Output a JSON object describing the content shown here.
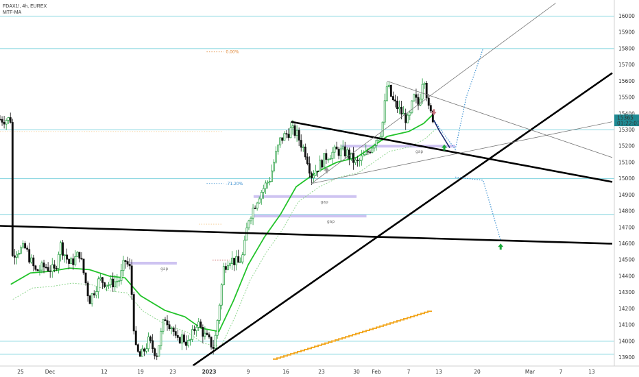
{
  "header": {
    "symbol": "FDAX1!, 4h, EUREX",
    "indicator": "MTF-MA"
  },
  "price_label": {
    "value": "15365",
    "countdown": "01:22:03"
  },
  "colors": {
    "bull": "#1e9b3a",
    "bear": "#111111",
    "ma": "#22c32a",
    "ma2": "#8fd68f",
    "hline": "#7fd3de",
    "trend": "#000000",
    "thin": "#777777",
    "projection": "#3a8fd0",
    "gap": "#c5b8ef",
    "stairs": "#f2a823",
    "price_tag": "#1f8a93",
    "arrow_green": "#1aa83a",
    "arrow_red": "#c2707a",
    "arrow_gray": "#9a9a9a",
    "arrow_blue": "#1a2a6e"
  },
  "chart_data": {
    "type": "candlestick",
    "title": "",
    "y_axis": {
      "range": [
        13840,
        16080
      ],
      "ticks": [
        13900,
        14000,
        14100,
        14200,
        14300,
        14400,
        14500,
        14600,
        14700,
        14800,
        14900,
        15000,
        15100,
        15200,
        15300,
        15400,
        15500,
        15600,
        15700,
        15800,
        15900,
        16000
      ],
      "position": "right"
    },
    "x_axis": {
      "tick_labels": [
        "25",
        "Dec",
        "12",
        "19",
        "23",
        "2023",
        "9",
        "16",
        "23",
        "30",
        "Feb",
        "7",
        "13",
        "20",
        "Mar",
        "7",
        "13"
      ]
    },
    "last_price": 15365,
    "close_path": [
      {
        "d": "Nov 23",
        "p": 14500
      },
      {
        "d": "Nov 24",
        "p": 14560
      },
      {
        "d": "Nov 26",
        "p": 14570
      },
      {
        "d": "Nov 28",
        "p": 14430
      },
      {
        "d": "Nov 30",
        "p": 14460
      },
      {
        "d": "Dec 2",
        "p": 14430
      },
      {
        "d": "Dec 3",
        "p": 14600
      },
      {
        "d": "Dec 5",
        "p": 14470
      },
      {
        "d": "Dec 7",
        "p": 14540
      },
      {
        "d": "Dec 9",
        "p": 14250
      },
      {
        "d": "Dec 11",
        "p": 14380
      },
      {
        "d": "Dec 13",
        "p": 14350
      },
      {
        "d": "Dec 15",
        "p": 14380
      },
      {
        "d": "Dec 16",
        "p": 14500
      },
      {
        "d": "Dec 17",
        "p": 14440
      },
      {
        "d": "Dec 18",
        "p": 13950
      },
      {
        "d": "Dec 19",
        "p": 13900
      },
      {
        "d": "Dec 20",
        "p": 14000
      },
      {
        "d": "Dec 21",
        "p": 13920
      },
      {
        "d": "Dec 22",
        "p": 14150
      },
      {
        "d": "Dec 23",
        "p": 14080
      },
      {
        "d": "Dec 24",
        "p": 13980
      },
      {
        "d": "Dec 25",
        "p": 14030
      },
      {
        "d": "Dec 27",
        "p": 13980
      },
      {
        "d": "Dec 29",
        "p": 14120
      },
      {
        "d": "Dec 31",
        "p": 14030
      },
      {
        "d": "Jan 2",
        "p": 13960
      },
      {
        "d": "Jan 3",
        "p": 14200
      },
      {
        "d": "Jan 4",
        "p": 14450
      },
      {
        "d": "Jan 5",
        "p": 14510
      },
      {
        "d": "Jan 7",
        "p": 14480
      },
      {
        "d": "Jan 8",
        "p": 14530
      },
      {
        "d": "Jan 9",
        "p": 14750
      },
      {
        "d": "Jan 11",
        "p": 14900
      },
      {
        "d": "Jan 13",
        "p": 15000
      },
      {
        "d": "Jan 14",
        "p": 15130
      },
      {
        "d": "Jan 15",
        "p": 15240
      },
      {
        "d": "Jan 17",
        "p": 15300
      },
      {
        "d": "Jan 18",
        "p": 15280
      },
      {
        "d": "Jan 20",
        "p": 15150
      },
      {
        "d": "Jan 21",
        "p": 15020
      },
      {
        "d": "Jan 22",
        "p": 15060
      },
      {
        "d": "Jan 24",
        "p": 15140
      },
      {
        "d": "Jan 26",
        "p": 15170
      },
      {
        "d": "Jan 28",
        "p": 15160
      },
      {
        "d": "Jan 30",
        "p": 15090
      },
      {
        "d": "Jan 31",
        "p": 15150
      },
      {
        "d": "Feb 2",
        "p": 15300
      },
      {
        "d": "Feb 3",
        "p": 15580
      },
      {
        "d": "Feb 4",
        "p": 15480
      },
      {
        "d": "Feb 6",
        "p": 15390
      },
      {
        "d": "Feb 7",
        "p": 15350
      },
      {
        "d": "Feb 8",
        "p": 15500
      },
      {
        "d": "Feb 9",
        "p": 15450
      },
      {
        "d": "Feb 10",
        "p": 15660
      },
      {
        "d": "Feb 11",
        "p": 15420
      },
      {
        "d": "Feb 12",
        "p": 15365
      }
    ],
    "moving_average": [
      {
        "d": "Nov 23",
        "p": 14350
      },
      {
        "d": "Nov 27",
        "p": 14420
      },
      {
        "d": "Dec 1",
        "p": 14430
      },
      {
        "d": "Dec 5",
        "p": 14450
      },
      {
        "d": "Dec 9",
        "p": 14440
      },
      {
        "d": "Dec 13",
        "p": 14400
      },
      {
        "d": "Dec 16",
        "p": 14390
      },
      {
        "d": "Dec 19",
        "p": 14280
      },
      {
        "d": "Dec 22",
        "p": 14190
      },
      {
        "d": "Dec 26",
        "p": 14150
      },
      {
        "d": "Dec 30",
        "p": 14080
      },
      {
        "d": "Jan 3",
        "p": 14060
      },
      {
        "d": "Jan 6",
        "p": 14250
      },
      {
        "d": "Jan 9",
        "p": 14470
      },
      {
        "d": "Jan 12",
        "p": 14640
      },
      {
        "d": "Jan 15",
        "p": 14780
      },
      {
        "d": "Jan 18",
        "p": 14950
      },
      {
        "d": "Jan 22",
        "p": 15040
      },
      {
        "d": "Jan 26",
        "p": 15100
      },
      {
        "d": "Jan 30",
        "p": 15130
      },
      {
        "d": "Feb 3",
        "p": 15260
      },
      {
        "d": "Feb 7",
        "p": 15290
      },
      {
        "d": "Feb 10",
        "p": 15340
      },
      {
        "d": "Feb 12",
        "p": 15400
      }
    ],
    "horizontal_levels": [
      15300,
      15000,
      14780,
      14000,
      13920
    ],
    "upper_levels": [
      16000,
      15800
    ],
    "trendlines": [
      {
        "from": {
          "d": "Nov 9",
          "p": 14720
        },
        "to": {
          "d": "Mar 17",
          "p": 14600
        },
        "weight": "thick"
      },
      {
        "from": {
          "d": "Jan 17",
          "p": 15350
        },
        "to": {
          "d": "Mar 17",
          "p": 14980
        },
        "weight": "thick"
      },
      {
        "from": {
          "d": "Dec 28",
          "p": 13850
        },
        "to": {
          "d": "Mar 17",
          "p": 15650
        },
        "weight": "thick"
      },
      {
        "from": {
          "d": "Feb 3",
          "p": 15600
        },
        "to": {
          "d": "Mar 17",
          "p": 15130
        },
        "weight": "thin"
      },
      {
        "from": {
          "d": "Jan 21",
          "p": 14970
        },
        "to": {
          "d": "Mar 17",
          "p": 15350
        },
        "weight": "thin"
      },
      {
        "from": {
          "d": "Jan 21",
          "p": 14970
        },
        "to": {
          "d": "Mar 6",
          "p": 16080
        },
        "weight": "thin"
      }
    ],
    "gaps": [
      {
        "start": "Dec 17",
        "end": "Dec 24",
        "p": 14480,
        "label": "gap"
      },
      {
        "start": "Jan 10",
        "end": "Jan 30",
        "p": 14890,
        "label": "gap"
      },
      {
        "start": "Jan 10",
        "end": "Jan 31",
        "p": 14770,
        "label": "gap"
      },
      {
        "start": "Jan 27",
        "end": "Feb 16",
        "p": 15200,
        "label": "gap"
      }
    ],
    "annotations": [
      {
        "text": "0.00%",
        "d": "Jan 4",
        "p": 15780,
        "color": "#e0893a"
      },
      {
        "text": "-71.20%",
        "d": "Jan 4",
        "p": 14970,
        "color": "#3a8fd0"
      }
    ],
    "projection_up": [
      {
        "d": "Feb 12",
        "p": 15360
      },
      {
        "d": "Feb 16",
        "p": 15180
      },
      {
        "d": "Feb 18",
        "p": 15500
      },
      {
        "d": "Feb 21",
        "p": 15800
      }
    ],
    "projection_down": [
      {
        "d": "Feb 16",
        "p": 15010
      },
      {
        "d": "Feb 21",
        "p": 14990
      },
      {
        "d": "Feb 24",
        "p": 14620
      }
    ],
    "signals": [
      {
        "type": "up",
        "d": "Jan 24",
        "p": 15050,
        "color": "gray"
      },
      {
        "type": "down",
        "d": "Feb 12",
        "p": 15410,
        "color": "red"
      },
      {
        "type": "up",
        "d": "Feb 14",
        "p": 15190,
        "color": "green"
      },
      {
        "type": "up",
        "d": "Feb 24",
        "p": 14580,
        "color": "green"
      }
    ]
  }
}
